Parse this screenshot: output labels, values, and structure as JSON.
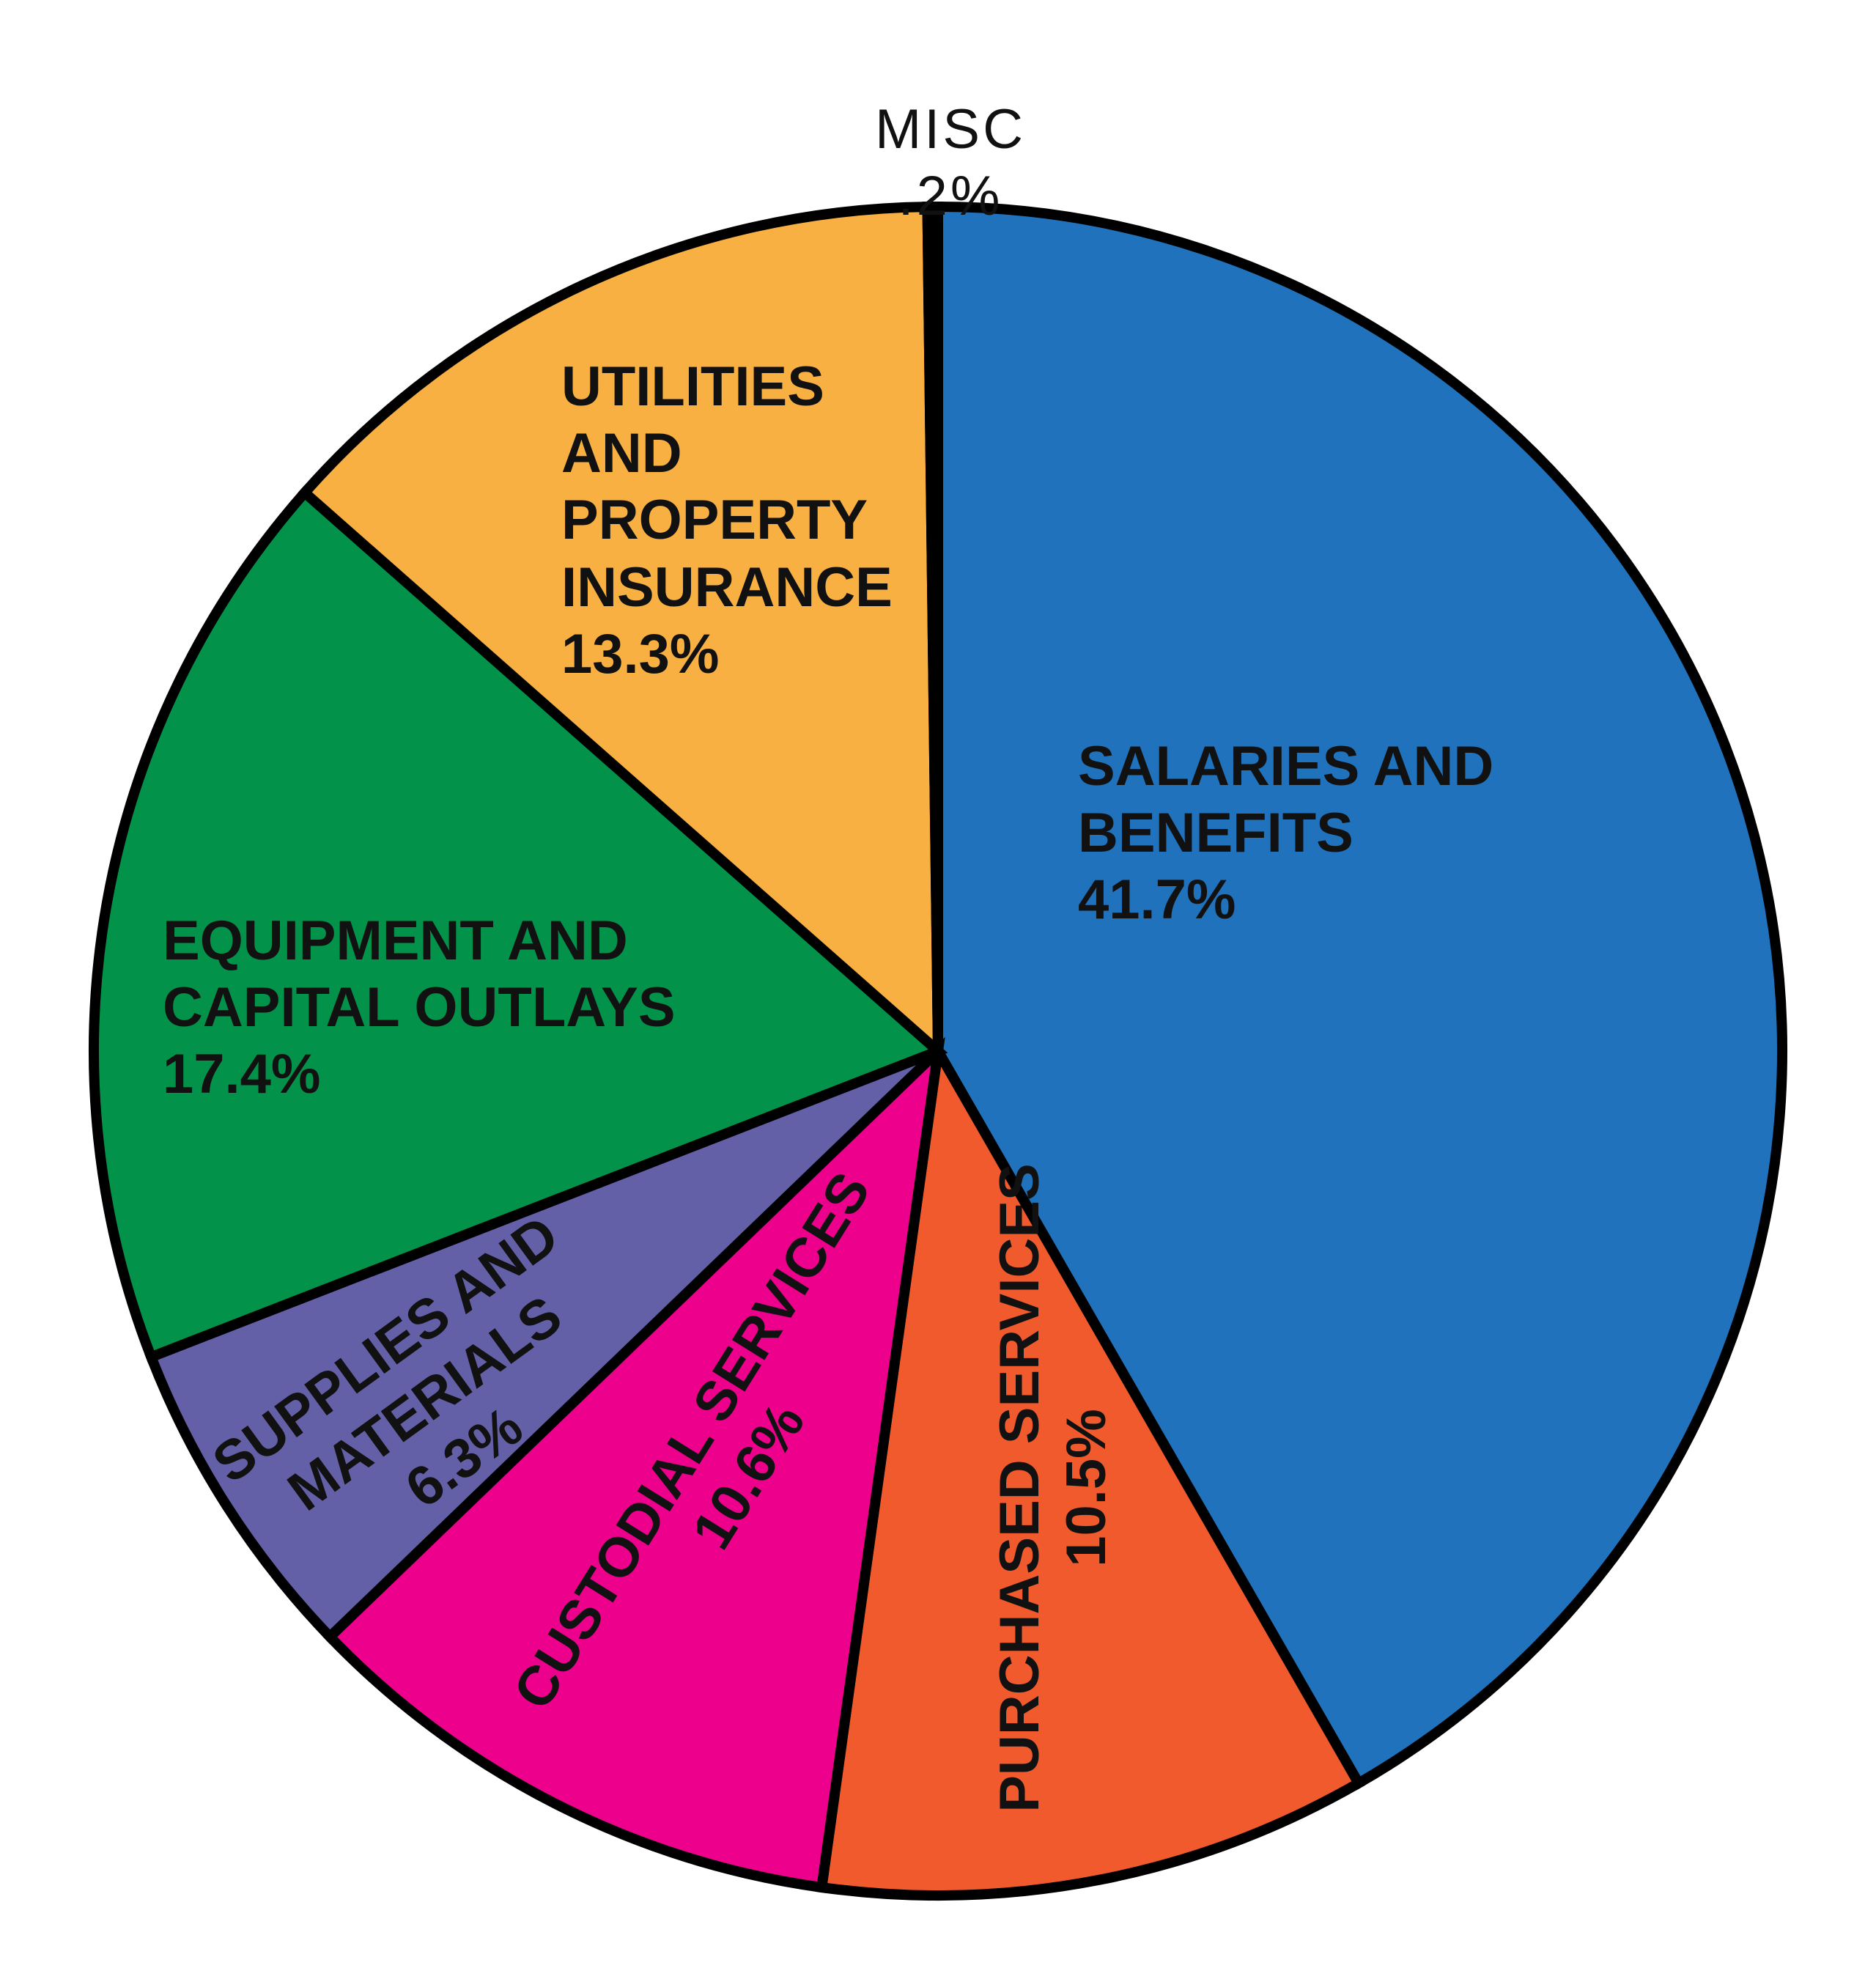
{
  "chart_data": {
    "type": "pie",
    "categories": [
      "SALARIES AND BENEFITS",
      "PURCHASED SERVICES",
      "CUSTODIAL SERVICES",
      "SUPPLIES AND MATERIALS",
      "EQUIPMENT AND CAPITAL OUTLAYS",
      "UTILITIES AND PROPERTY INSURANCE",
      "MISC"
    ],
    "values": [
      41.7,
      10.5,
      10.6,
      6.3,
      17.4,
      13.3,
      0.2
    ],
    "value_labels": [
      "41.7%",
      "10.5%",
      "10.6%",
      "6.3%",
      "17.4%",
      "13.3%",
      ".2%"
    ],
    "colors": [
      "#1f72bb",
      "#f05a2c",
      "#ec008c",
      "#6460a8",
      "#03924a",
      "#f9b042",
      "#000000"
    ]
  }
}
